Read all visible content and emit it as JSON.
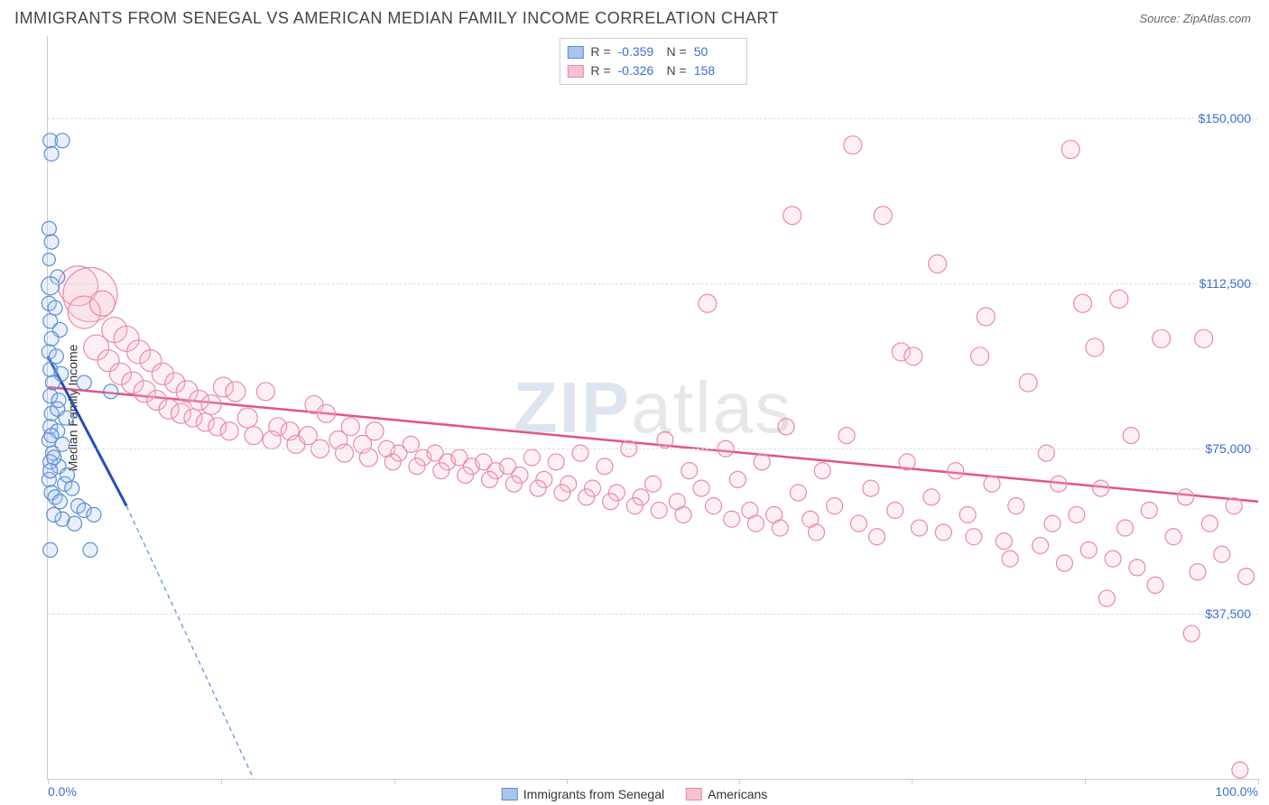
{
  "title": "IMMIGRANTS FROM SENEGAL VS AMERICAN MEDIAN FAMILY INCOME CORRELATION CHART",
  "source": "Source: ZipAtlas.com",
  "ylabel": "Median Family Income",
  "watermark_a": "ZIP",
  "watermark_b": "atlas",
  "chart": {
    "type": "scatter",
    "background_color": "#ffffff",
    "grid_color": "#dddddd",
    "axis_color": "#cccccc",
    "xlim": [
      0,
      100
    ],
    "ylim": [
      0,
      168750
    ],
    "yticks": [
      37500,
      75000,
      112500,
      150000
    ],
    "ytick_labels": [
      "$37,500",
      "$75,000",
      "$112,500",
      "$150,000"
    ],
    "xticks": [
      0,
      14.3,
      28.6,
      42.9,
      57.1,
      71.4,
      85.7,
      100
    ],
    "xtick_labels_visible": {
      "0": "0.0%",
      "100": "100.0%"
    },
    "tick_label_color": "#3b6fd6",
    "tick_label_fontsize": 14,
    "marker_stroke_width": 1.2,
    "marker_fill_opacity": 0.25
  },
  "series": {
    "senegal": {
      "label": "Immigrants from Senegal",
      "color_fill": "#a9c5ee",
      "color_stroke": "#5a8ed6",
      "reg_color": "#1f4fb5",
      "r_label": "R =",
      "n_label": "N =",
      "R": "-0.359",
      "N": "50",
      "reg_x1": 0,
      "reg_y1": 96000,
      "reg_x2": 6.5,
      "reg_y2": 62000,
      "reg_ext_x2": 17,
      "reg_ext_y2": 0,
      "dash_pattern": "5,4",
      "points": [
        {
          "x": 0.2,
          "y": 145000,
          "r": 8
        },
        {
          "x": 1.2,
          "y": 145000,
          "r": 8
        },
        {
          "x": 0.3,
          "y": 142000,
          "r": 8
        },
        {
          "x": 0.1,
          "y": 125000,
          "r": 8
        },
        {
          "x": 0.3,
          "y": 122000,
          "r": 8
        },
        {
          "x": 0.1,
          "y": 118000,
          "r": 7
        },
        {
          "x": 0.8,
          "y": 114000,
          "r": 8
        },
        {
          "x": 0.2,
          "y": 112000,
          "r": 10
        },
        {
          "x": 0.1,
          "y": 108000,
          "r": 8
        },
        {
          "x": 0.6,
          "y": 107000,
          "r": 8
        },
        {
          "x": 0.2,
          "y": 104000,
          "r": 8
        },
        {
          "x": 1.0,
          "y": 102000,
          "r": 8
        },
        {
          "x": 0.3,
          "y": 100000,
          "r": 8
        },
        {
          "x": 0.1,
          "y": 97000,
          "r": 8
        },
        {
          "x": 0.7,
          "y": 96000,
          "r": 8
        },
        {
          "x": 0.2,
          "y": 93000,
          "r": 8
        },
        {
          "x": 1.1,
          "y": 92000,
          "r": 8
        },
        {
          "x": 0.4,
          "y": 90000,
          "r": 8
        },
        {
          "x": 3.0,
          "y": 90000,
          "r": 8
        },
        {
          "x": 0.2,
          "y": 87000,
          "r": 8
        },
        {
          "x": 0.9,
          "y": 86000,
          "r": 8
        },
        {
          "x": 5.2,
          "y": 88000,
          "r": 8
        },
        {
          "x": 0.3,
          "y": 83000,
          "r": 8
        },
        {
          "x": 1.5,
          "y": 82000,
          "r": 8
        },
        {
          "x": 0.2,
          "y": 80000,
          "r": 8
        },
        {
          "x": 0.8,
          "y": 79000,
          "r": 8
        },
        {
          "x": 0.1,
          "y": 77000,
          "r": 8
        },
        {
          "x": 1.2,
          "y": 76000,
          "r": 8
        },
        {
          "x": 0.4,
          "y": 74000,
          "r": 8
        },
        {
          "x": 0.2,
          "y": 72000,
          "r": 8
        },
        {
          "x": 0.9,
          "y": 71000,
          "r": 8
        },
        {
          "x": 0.1,
          "y": 68000,
          "r": 8
        },
        {
          "x": 1.4,
          "y": 67000,
          "r": 8
        },
        {
          "x": 0.3,
          "y": 65000,
          "r": 8
        },
        {
          "x": 0.5,
          "y": 73000,
          "r": 8
        },
        {
          "x": 0.2,
          "y": 70000,
          "r": 8
        },
        {
          "x": 2.0,
          "y": 66000,
          "r": 8
        },
        {
          "x": 0.6,
          "y": 64000,
          "r": 8
        },
        {
          "x": 1.0,
          "y": 63000,
          "r": 8
        },
        {
          "x": 2.5,
          "y": 62000,
          "r": 8
        },
        {
          "x": 3.0,
          "y": 61000,
          "r": 8
        },
        {
          "x": 3.8,
          "y": 60000,
          "r": 8
        },
        {
          "x": 1.2,
          "y": 59000,
          "r": 8
        },
        {
          "x": 2.2,
          "y": 58000,
          "r": 8
        },
        {
          "x": 0.2,
          "y": 52000,
          "r": 8
        },
        {
          "x": 3.5,
          "y": 52000,
          "r": 8
        },
        {
          "x": 0.8,
          "y": 84000,
          "r": 8
        },
        {
          "x": 0.3,
          "y": 78000,
          "r": 8
        },
        {
          "x": 1.6,
          "y": 69000,
          "r": 8
        },
        {
          "x": 0.5,
          "y": 60000,
          "r": 8
        }
      ]
    },
    "americans": {
      "label": "Americans",
      "color_fill": "#f6c1cf",
      "color_stroke": "#e98aa5",
      "reg_color": "#e55383",
      "r_label": "R =",
      "n_label": "N =",
      "R": "-0.326",
      "N": "158",
      "reg_x1": 0,
      "reg_y1": 89000,
      "reg_x2": 100,
      "reg_y2": 63000,
      "points": [
        {
          "x": 2.5,
          "y": 112000,
          "r": 22
        },
        {
          "x": 3.5,
          "y": 110000,
          "r": 30
        },
        {
          "x": 3.0,
          "y": 106000,
          "r": 18
        },
        {
          "x": 4.5,
          "y": 108000,
          "r": 14
        },
        {
          "x": 5.5,
          "y": 102000,
          "r": 14
        },
        {
          "x": 4.0,
          "y": 98000,
          "r": 14
        },
        {
          "x": 6.5,
          "y": 100000,
          "r": 14
        },
        {
          "x": 5.0,
          "y": 95000,
          "r": 12
        },
        {
          "x": 7.5,
          "y": 97000,
          "r": 13
        },
        {
          "x": 6.0,
          "y": 92000,
          "r": 12
        },
        {
          "x": 8.5,
          "y": 95000,
          "r": 12
        },
        {
          "x": 7.0,
          "y": 90000,
          "r": 12
        },
        {
          "x": 9.5,
          "y": 92000,
          "r": 12
        },
        {
          "x": 8.0,
          "y": 88000,
          "r": 12
        },
        {
          "x": 10.5,
          "y": 90000,
          "r": 11
        },
        {
          "x": 9.0,
          "y": 86000,
          "r": 11
        },
        {
          "x": 11.5,
          "y": 88000,
          "r": 12
        },
        {
          "x": 10.0,
          "y": 84000,
          "r": 11
        },
        {
          "x": 12.5,
          "y": 86000,
          "r": 11
        },
        {
          "x": 11.0,
          "y": 83000,
          "r": 11
        },
        {
          "x": 13.5,
          "y": 85000,
          "r": 11
        },
        {
          "x": 12.0,
          "y": 82000,
          "r": 10
        },
        {
          "x": 14.5,
          "y": 89000,
          "r": 11
        },
        {
          "x": 13.0,
          "y": 81000,
          "r": 10
        },
        {
          "x": 15.5,
          "y": 88000,
          "r": 11
        },
        {
          "x": 14.0,
          "y": 80000,
          "r": 10
        },
        {
          "x": 16.5,
          "y": 82000,
          "r": 11
        },
        {
          "x": 15.0,
          "y": 79000,
          "r": 10
        },
        {
          "x": 18.0,
          "y": 88000,
          "r": 10
        },
        {
          "x": 17.0,
          "y": 78000,
          "r": 10
        },
        {
          "x": 19.0,
          "y": 80000,
          "r": 10
        },
        {
          "x": 18.5,
          "y": 77000,
          "r": 10
        },
        {
          "x": 20.0,
          "y": 79000,
          "r": 10
        },
        {
          "x": 20.5,
          "y": 76000,
          "r": 10
        },
        {
          "x": 21.5,
          "y": 78000,
          "r": 10
        },
        {
          "x": 22.0,
          "y": 85000,
          "r": 10
        },
        {
          "x": 23.0,
          "y": 83000,
          "r": 10
        },
        {
          "x": 22.5,
          "y": 75000,
          "r": 10
        },
        {
          "x": 24.0,
          "y": 77000,
          "r": 10
        },
        {
          "x": 25.0,
          "y": 80000,
          "r": 10
        },
        {
          "x": 24.5,
          "y": 74000,
          "r": 10
        },
        {
          "x": 26.0,
          "y": 76000,
          "r": 10
        },
        {
          "x": 27.0,
          "y": 79000,
          "r": 10
        },
        {
          "x": 26.5,
          "y": 73000,
          "r": 10
        },
        {
          "x": 28.0,
          "y": 75000,
          "r": 9
        },
        {
          "x": 29.0,
          "y": 74000,
          "r": 9
        },
        {
          "x": 28.5,
          "y": 72000,
          "r": 9
        },
        {
          "x": 30.0,
          "y": 76000,
          "r": 9
        },
        {
          "x": 31.0,
          "y": 73000,
          "r": 9
        },
        {
          "x": 30.5,
          "y": 71000,
          "r": 9
        },
        {
          "x": 32.0,
          "y": 74000,
          "r": 9
        },
        {
          "x": 33.0,
          "y": 72000,
          "r": 9
        },
        {
          "x": 32.5,
          "y": 70000,
          "r": 9
        },
        {
          "x": 34.0,
          "y": 73000,
          "r": 9
        },
        {
          "x": 35.0,
          "y": 71000,
          "r": 9
        },
        {
          "x": 34.5,
          "y": 69000,
          "r": 9
        },
        {
          "x": 36.0,
          "y": 72000,
          "r": 9
        },
        {
          "x": 37.0,
          "y": 70000,
          "r": 9
        },
        {
          "x": 36.5,
          "y": 68000,
          "r": 9
        },
        {
          "x": 38.0,
          "y": 71000,
          "r": 9
        },
        {
          "x": 39.0,
          "y": 69000,
          "r": 9
        },
        {
          "x": 38.5,
          "y": 67000,
          "r": 9
        },
        {
          "x": 40.0,
          "y": 73000,
          "r": 9
        },
        {
          "x": 41.0,
          "y": 68000,
          "r": 9
        },
        {
          "x": 40.5,
          "y": 66000,
          "r": 9
        },
        {
          "x": 42.0,
          "y": 72000,
          "r": 9
        },
        {
          "x": 43.0,
          "y": 67000,
          "r": 9
        },
        {
          "x": 42.5,
          "y": 65000,
          "r": 9
        },
        {
          "x": 44.0,
          "y": 74000,
          "r": 9
        },
        {
          "x": 45.0,
          "y": 66000,
          "r": 9
        },
        {
          "x": 44.5,
          "y": 64000,
          "r": 9
        },
        {
          "x": 46.0,
          "y": 71000,
          "r": 9
        },
        {
          "x": 47.0,
          "y": 65000,
          "r": 9
        },
        {
          "x": 46.5,
          "y": 63000,
          "r": 9
        },
        {
          "x": 48.0,
          "y": 75000,
          "r": 9
        },
        {
          "x": 49.0,
          "y": 64000,
          "r": 9
        },
        {
          "x": 48.5,
          "y": 62000,
          "r": 9
        },
        {
          "x": 50.0,
          "y": 67000,
          "r": 9
        },
        {
          "x": 51.0,
          "y": 77000,
          "r": 9
        },
        {
          "x": 50.5,
          "y": 61000,
          "r": 9
        },
        {
          "x": 52.0,
          "y": 63000,
          "r": 9
        },
        {
          "x": 53.0,
          "y": 70000,
          "r": 9
        },
        {
          "x": 52.5,
          "y": 60000,
          "r": 9
        },
        {
          "x": 54.0,
          "y": 66000,
          "r": 9
        },
        {
          "x": 54.5,
          "y": 108000,
          "r": 10
        },
        {
          "x": 55.0,
          "y": 62000,
          "r": 9
        },
        {
          "x": 56.0,
          "y": 75000,
          "r": 9
        },
        {
          "x": 56.5,
          "y": 59000,
          "r": 9
        },
        {
          "x": 57.0,
          "y": 68000,
          "r": 9
        },
        {
          "x": 58.0,
          "y": 61000,
          "r": 9
        },
        {
          "x": 58.5,
          "y": 58000,
          "r": 9
        },
        {
          "x": 59.0,
          "y": 72000,
          "r": 9
        },
        {
          "x": 60.0,
          "y": 60000,
          "r": 9
        },
        {
          "x": 60.5,
          "y": 57000,
          "r": 9
        },
        {
          "x": 61.0,
          "y": 80000,
          "r": 9
        },
        {
          "x": 62.0,
          "y": 65000,
          "r": 9
        },
        {
          "x": 61.5,
          "y": 128000,
          "r": 10
        },
        {
          "x": 63.0,
          "y": 59000,
          "r": 9
        },
        {
          "x": 64.0,
          "y": 70000,
          "r": 9
        },
        {
          "x": 63.5,
          "y": 56000,
          "r": 9
        },
        {
          "x": 65.0,
          "y": 62000,
          "r": 9
        },
        {
          "x": 66.0,
          "y": 78000,
          "r": 9
        },
        {
          "x": 66.5,
          "y": 144000,
          "r": 10
        },
        {
          "x": 67.0,
          "y": 58000,
          "r": 9
        },
        {
          "x": 68.0,
          "y": 66000,
          "r": 9
        },
        {
          "x": 68.5,
          "y": 55000,
          "r": 9
        },
        {
          "x": 69.0,
          "y": 128000,
          "r": 10
        },
        {
          "x": 70.0,
          "y": 61000,
          "r": 9
        },
        {
          "x": 70.5,
          "y": 97000,
          "r": 10
        },
        {
          "x": 71.0,
          "y": 72000,
          "r": 9
        },
        {
          "x": 72.0,
          "y": 57000,
          "r": 9
        },
        {
          "x": 71.5,
          "y": 96000,
          "r": 10
        },
        {
          "x": 73.0,
          "y": 64000,
          "r": 9
        },
        {
          "x": 73.5,
          "y": 117000,
          "r": 10
        },
        {
          "x": 74.0,
          "y": 56000,
          "r": 9
        },
        {
          "x": 75.0,
          "y": 70000,
          "r": 9
        },
        {
          "x": 76.0,
          "y": 60000,
          "r": 9
        },
        {
          "x": 76.5,
          "y": 55000,
          "r": 9
        },
        {
          "x": 77.0,
          "y": 96000,
          "r": 10
        },
        {
          "x": 77.5,
          "y": 105000,
          "r": 10
        },
        {
          "x": 78.0,
          "y": 67000,
          "r": 9
        },
        {
          "x": 79.0,
          "y": 54000,
          "r": 9
        },
        {
          "x": 79.5,
          "y": 50000,
          "r": 9
        },
        {
          "x": 80.0,
          "y": 62000,
          "r": 9
        },
        {
          "x": 81.0,
          "y": 90000,
          "r": 10
        },
        {
          "x": 82.0,
          "y": 53000,
          "r": 9
        },
        {
          "x": 82.5,
          "y": 74000,
          "r": 9
        },
        {
          "x": 83.0,
          "y": 58000,
          "r": 9
        },
        {
          "x": 83.5,
          "y": 67000,
          "r": 9
        },
        {
          "x": 84.0,
          "y": 49000,
          "r": 9
        },
        {
          "x": 84.5,
          "y": 143000,
          "r": 10
        },
        {
          "x": 85.0,
          "y": 60000,
          "r": 9
        },
        {
          "x": 85.5,
          "y": 108000,
          "r": 10
        },
        {
          "x": 86.0,
          "y": 52000,
          "r": 9
        },
        {
          "x": 86.5,
          "y": 98000,
          "r": 10
        },
        {
          "x": 87.0,
          "y": 66000,
          "r": 9
        },
        {
          "x": 87.5,
          "y": 41000,
          "r": 9
        },
        {
          "x": 88.0,
          "y": 50000,
          "r": 9
        },
        {
          "x": 88.5,
          "y": 109000,
          "r": 10
        },
        {
          "x": 89.0,
          "y": 57000,
          "r": 9
        },
        {
          "x": 89.5,
          "y": 78000,
          "r": 9
        },
        {
          "x": 90.0,
          "y": 48000,
          "r": 9
        },
        {
          "x": 91.0,
          "y": 61000,
          "r": 9
        },
        {
          "x": 91.5,
          "y": 44000,
          "r": 9
        },
        {
          "x": 92.0,
          "y": 100000,
          "r": 10
        },
        {
          "x": 93.0,
          "y": 55000,
          "r": 9
        },
        {
          "x": 94.0,
          "y": 64000,
          "r": 9
        },
        {
          "x": 94.5,
          "y": 33000,
          "r": 9
        },
        {
          "x": 95.0,
          "y": 47000,
          "r": 9
        },
        {
          "x": 95.5,
          "y": 100000,
          "r": 10
        },
        {
          "x": 96.0,
          "y": 58000,
          "r": 9
        },
        {
          "x": 97.0,
          "y": 51000,
          "r": 9
        },
        {
          "x": 98.0,
          "y": 62000,
          "r": 9
        },
        {
          "x": 98.5,
          "y": 2000,
          "r": 9
        },
        {
          "x": 99.0,
          "y": 46000,
          "r": 9
        }
      ]
    }
  },
  "legend_bottom": {
    "a": "Immigrants from Senegal",
    "b": "Americans"
  }
}
